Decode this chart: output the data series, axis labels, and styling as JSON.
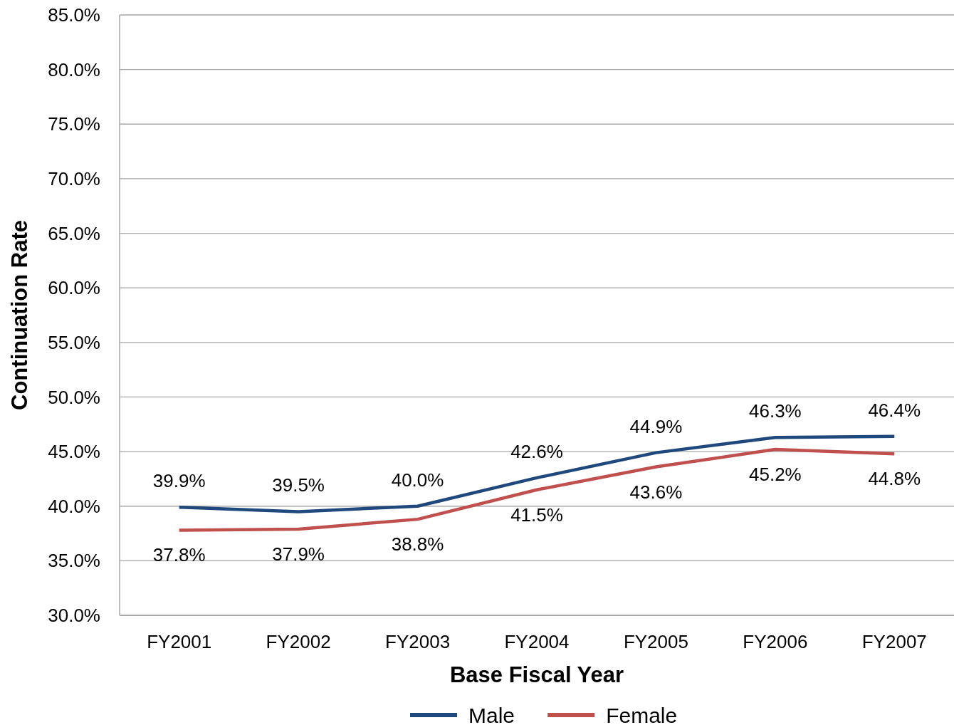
{
  "chart_data": {
    "type": "line",
    "xlabel": "Base Fiscal Year",
    "ylabel": "Continuation Rate",
    "categories": [
      "FY2001",
      "FY2002",
      "FY2003",
      "FY2004",
      "FY2005",
      "FY2006",
      "FY2007"
    ],
    "series": [
      {
        "name": "Male",
        "color": "#1f497d",
        "values": [
          39.9,
          39.5,
          40.0,
          42.6,
          44.9,
          46.3,
          46.4
        ],
        "value_labels": [
          "39.9%",
          "39.5%",
          "40.0%",
          "42.6%",
          "44.9%",
          "46.3%",
          "46.4%"
        ]
      },
      {
        "name": "Female",
        "color": "#c0504d",
        "values": [
          37.8,
          37.9,
          38.8,
          41.5,
          43.6,
          45.2,
          44.8
        ],
        "value_labels": [
          "37.8%",
          "37.9%",
          "38.8%",
          "41.5%",
          "43.6%",
          "45.2%",
          "44.8%"
        ]
      }
    ],
    "ylim": [
      30,
      85
    ],
    "yticks": [
      {
        "value": 30,
        "label": "30.0%"
      },
      {
        "value": 35,
        "label": "35.0%"
      },
      {
        "value": 40,
        "label": "40.0%"
      },
      {
        "value": 45,
        "label": "45.0%"
      },
      {
        "value": 50,
        "label": "50.0%"
      },
      {
        "value": 55,
        "label": "55.0%"
      },
      {
        "value": 60,
        "label": "60.0%"
      },
      {
        "value": 65,
        "label": "65.0%"
      },
      {
        "value": 70,
        "label": "70.0%"
      },
      {
        "value": 75,
        "label": "75.0%"
      },
      {
        "value": 80,
        "label": "80.0%"
      },
      {
        "value": 85,
        "label": "85.0%"
      }
    ],
    "grid": "y",
    "legend": "bottom"
  }
}
